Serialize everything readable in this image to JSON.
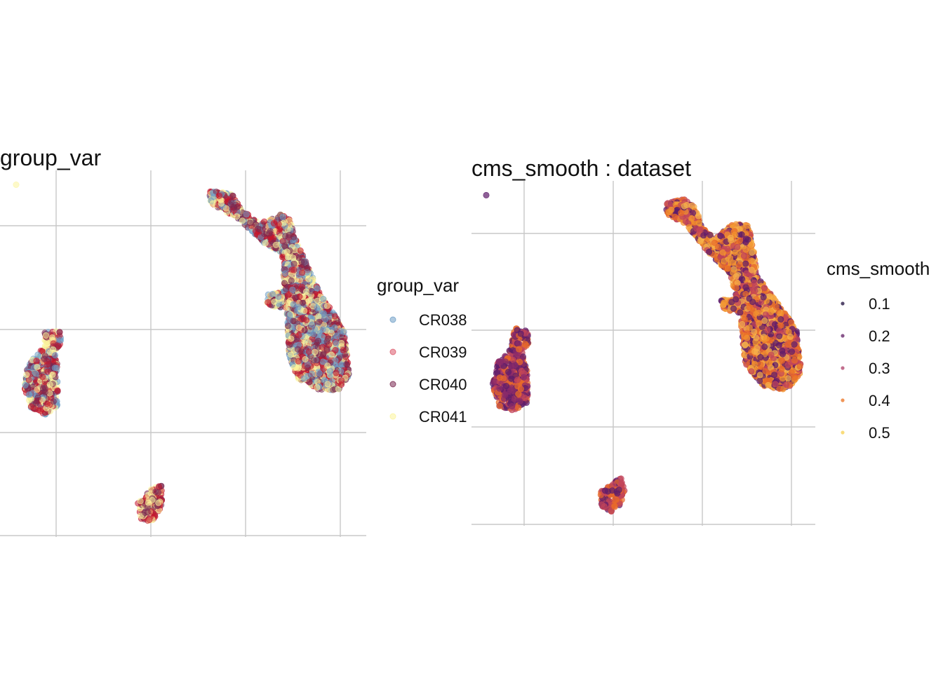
{
  "chart_data": [
    {
      "type": "scatter",
      "title": "group_var",
      "xlabel": "",
      "ylabel": "",
      "grid": true,
      "axis_ticks_shown": false,
      "legend": {
        "title": "group_var",
        "placement": "right",
        "entries": [
          {
            "label": "CR038",
            "color": "#6f9fc7"
          },
          {
            "label": "CR039",
            "color": "#dc5a6c"
          },
          {
            "label": "CR040",
            "color": "#7a2a52"
          },
          {
            "label": "CR041",
            "color": "#fbf49c"
          }
        ]
      },
      "clusters": [
        {
          "name": "upper-right",
          "colors": [
            "#7a2a52",
            "#c4172d",
            "#6f9fc7",
            "#fbf49c"
          ]
        },
        {
          "name": "left",
          "colors": [
            "#6f9fc7",
            "#c4172d",
            "#7a2a52",
            "#fbf49c"
          ]
        },
        {
          "name": "bottom",
          "colors": [
            "#7a2a52",
            "#c4172d",
            "#fbf49c"
          ]
        },
        {
          "name": "outlier",
          "colors": [
            "#fbf49c"
          ]
        }
      ]
    },
    {
      "type": "scatter",
      "title": "cms_smooth : dataset",
      "xlabel": "",
      "ylabel": "",
      "grid": true,
      "axis_ticks_shown": false,
      "legend": {
        "title": "cms_smooth",
        "placement": "right",
        "entries": [
          {
            "label": "0.1",
            "color": "#2a1a47"
          },
          {
            "label": "0.2",
            "color": "#6a2a6e"
          },
          {
            "label": "0.3",
            "color": "#b34a72"
          },
          {
            "label": "0.4",
            "color": "#ec7b2d"
          },
          {
            "label": "0.5",
            "color": "#f7d35a"
          }
        ]
      },
      "clusters": [
        {
          "name": "upper-right",
          "colors": [
            "#e86a2a",
            "#f2932f",
            "#c2445a",
            "#5e1d6b",
            "#f6b04a"
          ]
        },
        {
          "name": "left",
          "colors": [
            "#c2445a",
            "#5e1d6b",
            "#e86a2a",
            "#8a2b6a"
          ]
        },
        {
          "name": "bottom",
          "colors": [
            "#c2445a",
            "#e86a2a",
            "#5e1d6b"
          ]
        },
        {
          "name": "outlier",
          "colors": [
            "#5e1d6b"
          ]
        }
      ]
    }
  ]
}
